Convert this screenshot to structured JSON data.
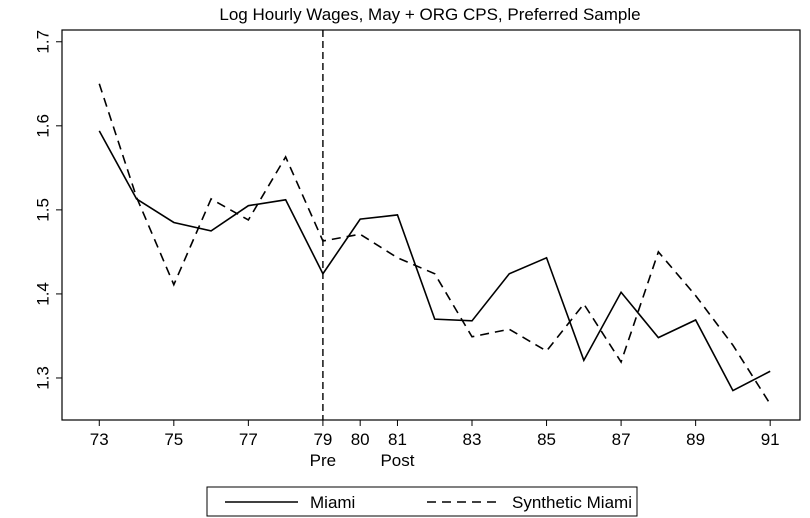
{
  "chart_data": {
    "type": "line",
    "title": "Log Hourly Wages, May + ORG CPS, Preferred Sample",
    "x": [
      73,
      74,
      75,
      76,
      77,
      78,
      79,
      80,
      81,
      82,
      83,
      84,
      85,
      86,
      87,
      88,
      89,
      90,
      91
    ],
    "series": [
      {
        "name": "Miami",
        "color": "#000000",
        "dash": "solid",
        "values": [
          1.594,
          1.513,
          1.485,
          1.475,
          1.505,
          1.512,
          1.424,
          1.489,
          1.494,
          1.37,
          1.368,
          1.424,
          1.443,
          1.321,
          1.402,
          1.348,
          1.369,
          1.285,
          1.308
        ]
      },
      {
        "name": "Synthetic Miami",
        "color": "#000000",
        "dash": "dashed",
        "values": [
          1.65,
          1.515,
          1.411,
          1.513,
          1.488,
          1.563,
          1.463,
          1.471,
          1.443,
          1.424,
          1.349,
          1.358,
          1.332,
          1.388,
          1.319,
          1.45,
          1.398,
          1.339,
          1.269
        ]
      }
    ],
    "xlim": [
      72,
      91.8
    ],
    "ylim": [
      1.25,
      1.714
    ],
    "xticks": [
      73,
      75,
      77,
      79,
      80,
      81,
      83,
      85,
      87,
      89,
      91
    ],
    "yticks": [
      1.3,
      1.4,
      1.5,
      1.6,
      1.7
    ],
    "vline": 79,
    "annotations": [
      {
        "text": "Pre",
        "x": 79
      },
      {
        "text": "Post",
        "x": 81
      }
    ],
    "legend": "bottom"
  }
}
